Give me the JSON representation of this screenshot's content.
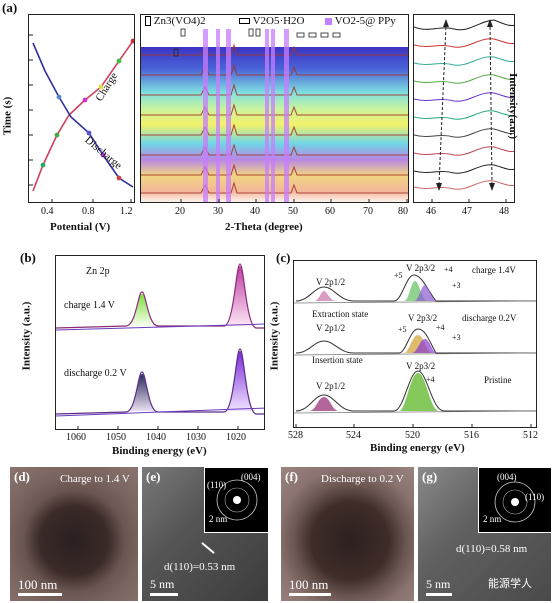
{
  "panel_a": {
    "label": "(a)",
    "left": {
      "ylabel": "Time (s)",
      "xlabel": "Potential (V)",
      "xticks": [
        "0.4",
        "0.8",
        "1.2"
      ],
      "charge": "Charge",
      "discharge": "Discharge"
    },
    "middle": {
      "xlabel": "2-Theta (degree)",
      "xticks": [
        "20",
        "30",
        "40",
        "50",
        "60",
        "70",
        "80"
      ],
      "legend": [
        "Zn3(VO4)2",
        "V2O5·H2O",
        "VO2-5@ PPy"
      ],
      "legend_colors": [
        "#000000",
        "#000000",
        "#c080ff"
      ],
      "highlight_color": "#c77dff"
    },
    "right": {
      "ylabel": "Intensity(a.u.)",
      "xticks": [
        "46",
        "47",
        "48"
      ]
    }
  },
  "panel_b": {
    "label": "(b)",
    "ylabel": "Intensity (a.u.)",
    "xlabel": "Binding energy (eV)",
    "xticks": [
      "1060",
      "1050",
      "1040",
      "1030",
      "1020"
    ],
    "title": "Zn 2p",
    "traces": [
      "charge 1.4 V",
      "discharge 0.2 V"
    ]
  },
  "panel_c": {
    "label": "(c)",
    "ylabel": "Intensity (a.u.)",
    "xlabel": "Binding energy (eV)",
    "xticks": [
      "528",
      "524",
      "520",
      "516",
      "512"
    ],
    "traces": [
      {
        "condition": "charge 1.4V",
        "state": "Extraction state",
        "peak_left": "V 2p1/2",
        "peak_right": "V 2p3/2",
        "labels": [
          "+5",
          "+4",
          "+3"
        ]
      },
      {
        "condition": "discharge 0.2V",
        "state": "Insertion state",
        "peak_left": "V 2p1/2",
        "peak_right": "V 2p3/2",
        "labels": [
          "+5",
          "+4",
          "+3"
        ]
      },
      {
        "condition": "Pristine",
        "state": "",
        "peak_left": "V 2p1/2",
        "peak_right": "V 2p3/2",
        "labels": [
          "+4"
        ]
      }
    ]
  },
  "panel_d": {
    "label": "(d)",
    "caption": "Charge to 1.4 V",
    "scale": "100 nm"
  },
  "panel_e": {
    "label": "(e)",
    "inset_labels": [
      "(110)",
      "(004)"
    ],
    "inset_scale": "2 nm",
    "spacing": "d(110)=0.53 nm",
    "scale": "5 nm"
  },
  "panel_f": {
    "label": "(f)",
    "caption": "Discharge to 0.2 V",
    "scale": "100 nm"
  },
  "panel_g": {
    "label": "(g)",
    "inset_labels": [
      "(004)",
      "(110)"
    ],
    "inset_scale": "2 nm",
    "spacing": "d(110)=0.58 nm",
    "scale": "5 nm"
  },
  "watermark": "能源学人"
}
